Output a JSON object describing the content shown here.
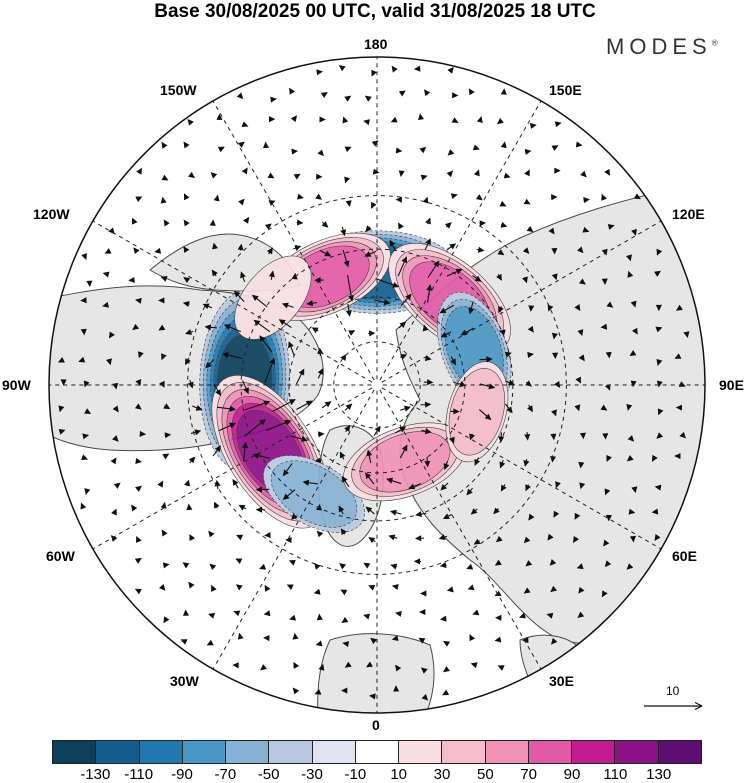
{
  "title": "Base 30/08/2025 00 UTC, valid 31/08/2025 18 UTC",
  "brand": {
    "text": "MODES",
    "mark": "®"
  },
  "map": {
    "projection": "north-polar-stereographic",
    "longitude_labels": {
      "180": "180",
      "150E": "150E",
      "120E": "120E",
      "90E": "90E",
      "60E": "60E",
      "30E": "30E",
      "0": "0",
      "30W": "30W",
      "60W": "60W",
      "90W": "90W",
      "120W": "120W",
      "150W": "150W"
    },
    "anomalies": [
      {
        "name": "low-pacific-180",
        "value": -110,
        "lon": 180,
        "lat": 52
      },
      {
        "name": "high-alaska-gulf",
        "value": 80,
        "lon": 205,
        "lat": 50
      },
      {
        "name": "high-east-siberia",
        "value": 90,
        "lon": 140,
        "lat": 52
      },
      {
        "name": "low-central-siberia",
        "value": -60,
        "lon": 110,
        "lat": 55
      },
      {
        "name": "low-canada",
        "value": -130,
        "lon": 268,
        "lat": 46
      },
      {
        "name": "high-west-atlantic",
        "value": 120,
        "lon": 302,
        "lat": 48
      },
      {
        "name": "low-central-atlantic",
        "value": -50,
        "lon": 330,
        "lat": 48
      },
      {
        "name": "high-scandinavia",
        "value": 70,
        "lon": 20,
        "lat": 62
      },
      {
        "name": "weak-high-pacific-nw",
        "value": 35,
        "lon": 230,
        "lat": 45
      },
      {
        "name": "weak-high-kazakh",
        "value": 40,
        "lon": 75,
        "lat": 55
      }
    ],
    "reference_vector": {
      "label": "10"
    }
  },
  "colorbar": {
    "colors": [
      "#0d3f5d",
      "#135d8c",
      "#2279b0",
      "#4a97c6",
      "#87b1d3",
      "#b9c8e1",
      "#e0e2f0",
      "#ffffff",
      "#f8dfe3",
      "#f5bccb",
      "#f092b6",
      "#e25aa5",
      "#c51a8f",
      "#8c0f86",
      "#5e0f73"
    ],
    "tick_labels": [
      "-130",
      "-110",
      "-90",
      "-70",
      "-50",
      "-30",
      "-10",
      "10",
      "30",
      "50",
      "70",
      "90",
      "110",
      "130"
    ]
  },
  "colors": {
    "land_fill": "#e6e6e6",
    "coast": "#4a4a4a",
    "grid": "#222222"
  }
}
